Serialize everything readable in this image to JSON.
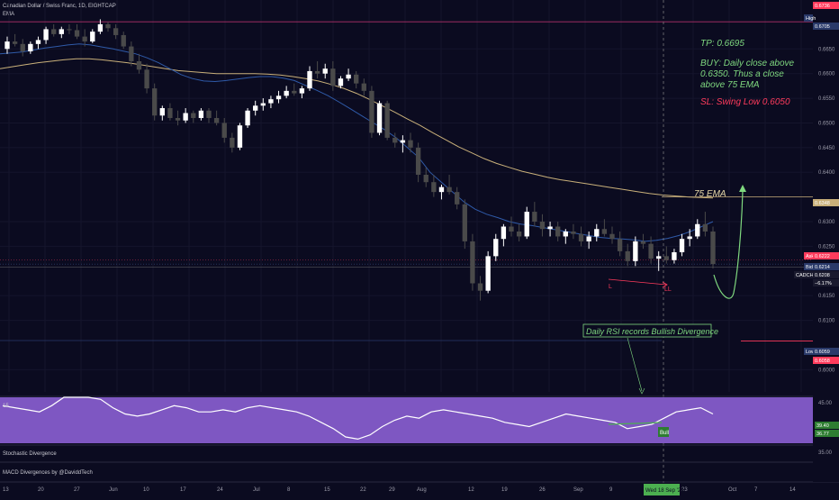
{
  "header": {
    "symbol_title": "Canadian Dollar / Swiss Franc, 1D, EIGHTCAP",
    "indicator_label": "EMA"
  },
  "annotations": {
    "tp": "TP: 0.6695",
    "buy": [
      "BUY: Daily close above",
      "0.6350. Thus a close",
      "above 75 EMA"
    ],
    "sl": "SL: Swing Low 0.6050",
    "ema_label": "75 EMA",
    "rsi_note": "Daily RSI records Bullish Divergence",
    "bull_tag": "Bull",
    "div_label_left": "L",
    "div_label_right": "LL"
  },
  "colors": {
    "background": "#0b0b20",
    "bull_candle": "#ffffff",
    "bear_candle": "#4a4a4a",
    "ema_fast": "#2f5aa8",
    "ema_slow": "#c9b07a",
    "tp_green": "#7fd87f",
    "sl_red": "#ff3b5c",
    "rsi_bg": "#7e57c2",
    "high_line": "#b0306a"
  },
  "price_axis": {
    "ticks": [
      "0.6650",
      "0.6600",
      "0.6550",
      "0.6500",
      "0.6450",
      "0.6400",
      "0.6300",
      "0.6250",
      "0.6150",
      "0.6100",
      "0.6000"
    ],
    "tags": [
      {
        "text": "0.6736",
        "bg": "#ff3b5c"
      },
      {
        "text": "High",
        "bg": "#2a3a6a"
      },
      {
        "text": "0.6705",
        "bg": "#2a3a6a"
      },
      {
        "text": "0.6348",
        "bg": "#c9b07a"
      },
      {
        "text": "Ask",
        "bg": "#ff3b5c"
      },
      {
        "text": "0.6222",
        "bg": "#ff3b5c"
      },
      {
        "text": "Bid",
        "bg": "#2a3a6a"
      },
      {
        "text": "0.6214",
        "bg": "#2a3a6a"
      },
      {
        "text": "CADCHF",
        "bg": "#1a1a2e"
      },
      {
        "text": "0.6208",
        "bg": "#1a1a2e"
      },
      {
        "text": "−6.17%",
        "bg": "#1a1a2e"
      },
      {
        "text": "Low",
        "bg": "#2a3a6a"
      },
      {
        "text": "0.6059",
        "bg": "#2a3a6a"
      },
      {
        "text": "0.6058",
        "bg": "#ff3b5c"
      }
    ]
  },
  "rsi_axis": {
    "ticks": [
      "45.00",
      "35.00"
    ],
    "tags": [
      {
        "text": "39.40",
        "bg": "#2e7d32"
      },
      {
        "text": "36.77",
        "bg": "#2e7d32"
      }
    ]
  },
  "time_axis": {
    "labels": [
      "13",
      "20",
      "27",
      "Jun",
      "10",
      "17",
      "24",
      "Jul",
      "8",
      "15",
      "22",
      "29",
      "Aug",
      "12",
      "19",
      "26",
      "Sep",
      "9",
      "16",
      "23",
      "Oct",
      "7",
      "14"
    ],
    "cursor_label": "Wed 18 Sep '24"
  },
  "panes": {
    "rsi_title": "15",
    "stoch_title": "Stochastic Divergence",
    "macd_title": "MACD Divergences by @DaviddTech"
  },
  "chart_data": {
    "type": "candlestick",
    "title": "Canadian Dollar / Swiss Franc, 1D, EIGHTCAP",
    "ylim": [
      0.5955,
      0.674
    ],
    "candles": [
      [
        0.665,
        0.6675,
        0.664,
        0.6665
      ],
      [
        0.6665,
        0.668,
        0.6655,
        0.666
      ],
      [
        0.666,
        0.667,
        0.6635,
        0.6645
      ],
      [
        0.6645,
        0.6665,
        0.664,
        0.666
      ],
      [
        0.666,
        0.6675,
        0.665,
        0.6668
      ],
      [
        0.6668,
        0.6695,
        0.666,
        0.669
      ],
      [
        0.669,
        0.67,
        0.6675,
        0.668
      ],
      [
        0.668,
        0.6695,
        0.6672,
        0.669
      ],
      [
        0.669,
        0.67,
        0.668,
        0.6688
      ],
      [
        0.6688,
        0.67,
        0.667,
        0.6675
      ],
      [
        0.6675,
        0.669,
        0.6655,
        0.6665
      ],
      [
        0.6665,
        0.669,
        0.6662,
        0.6685
      ],
      [
        0.6685,
        0.671,
        0.668,
        0.67
      ],
      [
        0.67,
        0.6705,
        0.6685,
        0.6692
      ],
      [
        0.6692,
        0.67,
        0.667,
        0.6678
      ],
      [
        0.6678,
        0.6685,
        0.665,
        0.6655
      ],
      [
        0.6655,
        0.6665,
        0.6615,
        0.6625
      ],
      [
        0.6625,
        0.664,
        0.66,
        0.6608
      ],
      [
        0.6608,
        0.662,
        0.656,
        0.657
      ],
      [
        0.657,
        0.658,
        0.6505,
        0.6515
      ],
      [
        0.6515,
        0.6535,
        0.6505,
        0.653
      ],
      [
        0.653,
        0.654,
        0.6505,
        0.651
      ],
      [
        0.651,
        0.6525,
        0.6495,
        0.6505
      ],
      [
        0.6505,
        0.653,
        0.65,
        0.652
      ],
      [
        0.652,
        0.6525,
        0.65,
        0.651
      ],
      [
        0.651,
        0.653,
        0.6505,
        0.6525
      ],
      [
        0.6525,
        0.653,
        0.65,
        0.651
      ],
      [
        0.651,
        0.6525,
        0.6495,
        0.65
      ],
      [
        0.65,
        0.651,
        0.646,
        0.647
      ],
      [
        0.647,
        0.648,
        0.644,
        0.645
      ],
      [
        0.645,
        0.65,
        0.6445,
        0.6495
      ],
      [
        0.6495,
        0.653,
        0.649,
        0.6525
      ],
      [
        0.6525,
        0.6545,
        0.6515,
        0.6535
      ],
      [
        0.6535,
        0.655,
        0.6525,
        0.654
      ],
      [
        0.654,
        0.6555,
        0.653,
        0.6548
      ],
      [
        0.6548,
        0.6565,
        0.654,
        0.6555
      ],
      [
        0.6555,
        0.6575,
        0.655,
        0.6565
      ],
      [
        0.6565,
        0.658,
        0.6555,
        0.656
      ],
      [
        0.656,
        0.6575,
        0.655,
        0.657
      ],
      [
        0.657,
        0.6615,
        0.6565,
        0.6605
      ],
      [
        0.6605,
        0.6625,
        0.659,
        0.66
      ],
      [
        0.66,
        0.662,
        0.659,
        0.661
      ],
      [
        0.661,
        0.6625,
        0.6565,
        0.6575
      ],
      [
        0.6575,
        0.6595,
        0.657,
        0.659
      ],
      [
        0.659,
        0.661,
        0.6585,
        0.6598
      ],
      [
        0.6598,
        0.6605,
        0.657,
        0.658
      ],
      [
        0.658,
        0.659,
        0.6555,
        0.6565
      ],
      [
        0.6565,
        0.6575,
        0.647,
        0.648
      ],
      [
        0.648,
        0.6545,
        0.6475,
        0.654
      ],
      [
        0.654,
        0.6545,
        0.6465,
        0.647
      ],
      [
        0.647,
        0.648,
        0.645,
        0.646
      ],
      [
        0.646,
        0.6475,
        0.644,
        0.6465
      ],
      [
        0.6465,
        0.648,
        0.644,
        0.645
      ],
      [
        0.645,
        0.646,
        0.638,
        0.6395
      ],
      [
        0.6395,
        0.641,
        0.637,
        0.638
      ],
      [
        0.638,
        0.6395,
        0.635,
        0.636
      ],
      [
        0.636,
        0.6375,
        0.6345,
        0.637
      ],
      [
        0.637,
        0.6395,
        0.6355,
        0.636
      ],
      [
        0.636,
        0.637,
        0.6325,
        0.6335
      ],
      [
        0.6335,
        0.6345,
        0.6245,
        0.626
      ],
      [
        0.626,
        0.6275,
        0.616,
        0.6175
      ],
      [
        0.6175,
        0.619,
        0.614,
        0.616
      ],
      [
        0.616,
        0.624,
        0.6155,
        0.623
      ],
      [
        0.623,
        0.6275,
        0.622,
        0.6265
      ],
      [
        0.6265,
        0.6295,
        0.625,
        0.629
      ],
      [
        0.629,
        0.631,
        0.627,
        0.628
      ],
      [
        0.628,
        0.6295,
        0.626,
        0.627
      ],
      [
        0.627,
        0.633,
        0.6265,
        0.632
      ],
      [
        0.632,
        0.634,
        0.629,
        0.63
      ],
      [
        0.63,
        0.6315,
        0.627,
        0.6285
      ],
      [
        0.6285,
        0.63,
        0.627,
        0.629
      ],
      [
        0.629,
        0.63,
        0.626,
        0.627
      ],
      [
        0.627,
        0.6285,
        0.6255,
        0.628
      ],
      [
        0.628,
        0.6295,
        0.6265,
        0.6275
      ],
      [
        0.6275,
        0.629,
        0.625,
        0.626
      ],
      [
        0.626,
        0.628,
        0.6245,
        0.627
      ],
      [
        0.627,
        0.6295,
        0.626,
        0.6285
      ],
      [
        0.6285,
        0.6305,
        0.627,
        0.6275
      ],
      [
        0.6275,
        0.629,
        0.6255,
        0.6265
      ],
      [
        0.6265,
        0.628,
        0.623,
        0.624
      ],
      [
        0.624,
        0.6255,
        0.621,
        0.622
      ],
      [
        0.622,
        0.627,
        0.621,
        0.626
      ],
      [
        0.626,
        0.6275,
        0.6245,
        0.6255
      ],
      [
        0.6255,
        0.627,
        0.6215,
        0.6225
      ],
      [
        0.6225,
        0.624,
        0.62,
        0.623
      ],
      [
        0.623,
        0.625,
        0.6215,
        0.6222
      ],
      [
        0.6222,
        0.6245,
        0.6215,
        0.6238
      ],
      [
        0.6238,
        0.6275,
        0.623,
        0.6265
      ],
      [
        0.6265,
        0.6285,
        0.625,
        0.627
      ],
      [
        0.627,
        0.6305,
        0.6265,
        0.6295
      ],
      [
        0.6295,
        0.632,
        0.627,
        0.628
      ],
      [
        0.628,
        0.629,
        0.6205,
        0.6214
      ]
    ],
    "ema_fast": [
      0.664,
      0.6642,
      0.6644,
      0.6648,
      0.6652,
      0.6655,
      0.6658,
      0.666,
      0.6658,
      0.6654,
      0.665,
      0.6645,
      0.664,
      0.6632,
      0.6622,
      0.661,
      0.6598,
      0.659,
      0.6585,
      0.6584,
      0.6586,
      0.6589,
      0.6592,
      0.6594,
      0.6594,
      0.6591,
      0.6586,
      0.6576,
      0.6566,
      0.6555,
      0.6542,
      0.6528,
      0.6514,
      0.65,
      0.6486,
      0.647,
      0.645,
      0.643,
      0.64,
      0.638,
      0.636,
      0.634,
      0.6325,
      0.6315,
      0.6308,
      0.63,
      0.6295,
      0.6292,
      0.6288,
      0.6284,
      0.628,
      0.6276,
      0.6272,
      0.6268,
      0.6266,
      0.6265,
      0.6263,
      0.626,
      0.6262,
      0.6266,
      0.6272,
      0.628,
      0.629,
      0.63
    ],
    "ema_slow": [
      0.661,
      0.6614,
      0.6618,
      0.6622,
      0.6625,
      0.6628,
      0.663,
      0.663,
      0.6628,
      0.6625,
      0.6622,
      0.6618,
      0.6614,
      0.661,
      0.6606,
      0.6604,
      0.6602,
      0.66,
      0.66,
      0.66,
      0.66,
      0.6599,
      0.6597,
      0.6594,
      0.659,
      0.6585,
      0.6578,
      0.657,
      0.656,
      0.6548,
      0.6535,
      0.6522,
      0.6508,
      0.6495,
      0.648,
      0.6466,
      0.6452,
      0.644,
      0.6428,
      0.6418,
      0.641,
      0.6402,
      0.6396,
      0.639,
      0.6385,
      0.6381,
      0.6377,
      0.6373,
      0.6369,
      0.6365,
      0.6361,
      0.6357,
      0.6354,
      0.6352,
      0.635,
      0.6349,
      0.6348
    ],
    "rsi": [
      48,
      47,
      46,
      45,
      48,
      52,
      54,
      53,
      51,
      47,
      44,
      43,
      44,
      46,
      48,
      47,
      45,
      45,
      46,
      45,
      47,
      48,
      47,
      46,
      45,
      43,
      40,
      37,
      33,
      32,
      34,
      38,
      41,
      43,
      42,
      45,
      46,
      45,
      44,
      43,
      42,
      40,
      39,
      38,
      40,
      42,
      44,
      43,
      42,
      41,
      40,
      37,
      38,
      39,
      42,
      45,
      46,
      47,
      44
    ],
    "levels": {
      "tp": 0.6695,
      "entry": 0.635,
      "sl": 0.605,
      "high": 0.6705,
      "low": 0.6059
    }
  }
}
